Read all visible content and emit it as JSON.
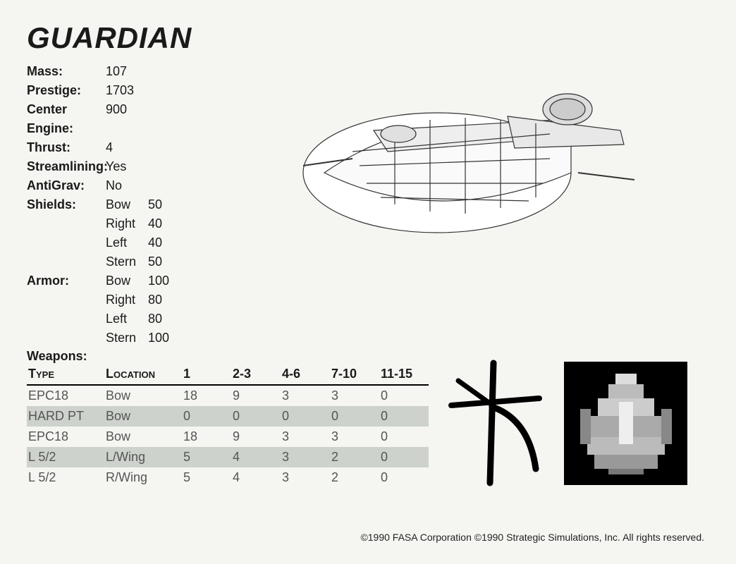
{
  "title": "GUARDIAN",
  "stats": {
    "mass": {
      "label": "Mass:",
      "value": "107"
    },
    "prestige": {
      "label": "Prestige:",
      "value": "1703"
    },
    "centerEngine": {
      "label": "Center Engine:",
      "value": "900"
    },
    "thrust": {
      "label": "Thrust:",
      "value": "4"
    },
    "streamlining": {
      "label": "Streamlining:",
      "value": "Yes"
    },
    "antigrav": {
      "label": "AntiGrav:",
      "value": "No"
    },
    "shields": {
      "label": "Shields:",
      "rows": [
        {
          "side": "Bow",
          "val": "50"
        },
        {
          "side": "Right",
          "val": "40"
        },
        {
          "side": "Left",
          "val": "40"
        },
        {
          "side": "Stern",
          "val": "50"
        }
      ]
    },
    "armor": {
      "label": "Armor:",
      "rows": [
        {
          "side": "Bow",
          "val": "100"
        },
        {
          "side": "Right",
          "val": "80"
        },
        {
          "side": "Left",
          "val": "80"
        },
        {
          "side": "Stern",
          "val": "100"
        }
      ]
    }
  },
  "weapons": {
    "label": "Weapons:",
    "headers": [
      "Type",
      "Location",
      "1",
      "2-3",
      "4-6",
      "7-10",
      "11-15"
    ],
    "rows": [
      {
        "cells": [
          "EPC18",
          "Bow",
          "18",
          "9",
          "3",
          "3",
          "0"
        ],
        "shaded": false
      },
      {
        "cells": [
          "HARD PT",
          "Bow",
          "0",
          "0",
          "0",
          "0",
          "0"
        ],
        "shaded": true
      },
      {
        "cells": [
          "EPC18",
          "Bow",
          "18",
          "9",
          "3",
          "3",
          "0"
        ],
        "shaded": false
      },
      {
        "cells": [
          "L 5/2",
          "L/Wing",
          "5",
          "4",
          "3",
          "2",
          "0"
        ],
        "shaded": true
      },
      {
        "cells": [
          "L 5/2",
          "R/Wing",
          "5",
          "4",
          "3",
          "2",
          "0"
        ],
        "shaded": false
      }
    ]
  },
  "copyright": "©1990 FASA Corporation ©1990 Strategic Simulations, Inc. All rights reserved.",
  "colors": {
    "bg": "#f5f5f2",
    "text": "#1a1a1a",
    "tableText": "#555555",
    "shaded": "#cdd2cc",
    "rule": "#000000"
  }
}
